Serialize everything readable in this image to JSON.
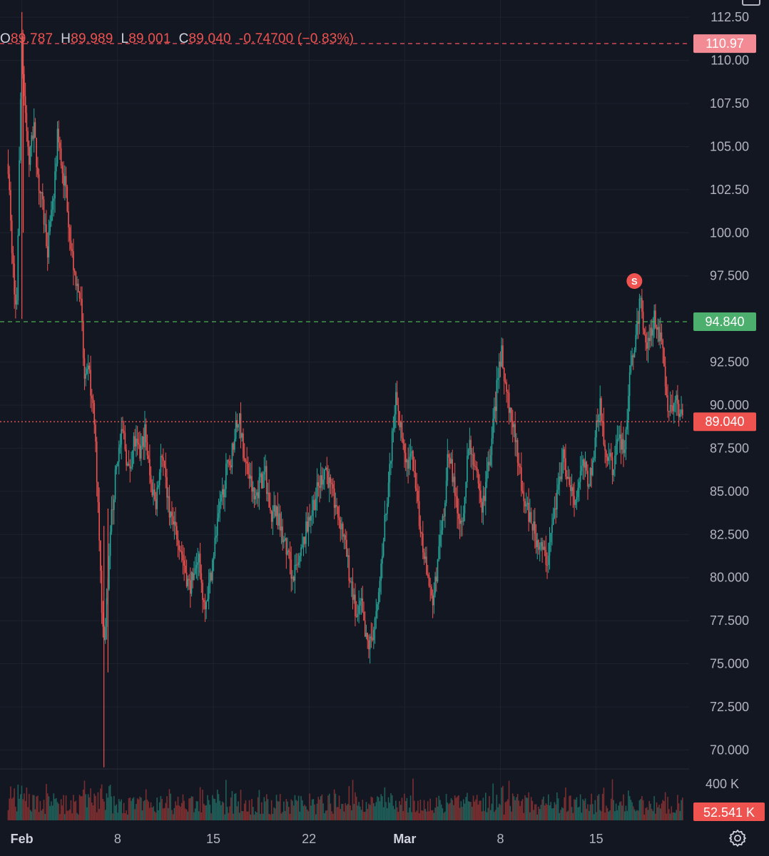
{
  "legend": {
    "open_label": "O",
    "open": "89.787",
    "high_label": "H",
    "high": "89.989",
    "low_label": "L",
    "low": "89.001",
    "close_label": "C",
    "close": "89.040",
    "change": "-0.74700 (−0.83%)"
  },
  "chart_data": {
    "type": "candlestick",
    "y_ticks": [
      "112.50",
      "110.00",
      "107.50",
      "105.00",
      "102.50",
      "100.00",
      "97.500",
      "94.840",
      "92.500",
      "90.000",
      "89.040",
      "87.500",
      "85.000",
      "82.500",
      "80.000",
      "77.500",
      "75.000",
      "72.500",
      "70.000"
    ],
    "ylim": [
      68.9,
      113.5
    ],
    "x_ticks": [
      {
        "label": "Feb",
        "day": 1
      },
      {
        "label": "8",
        "day": 8
      },
      {
        "label": "15",
        "day": 15
      },
      {
        "label": "22",
        "day": 22
      },
      {
        "label": "Mar",
        "day": 29
      },
      {
        "label": "8",
        "day": 36
      },
      {
        "label": "15",
        "day": 43
      }
    ],
    "x_day_range": [
      -0.6,
      49.8
    ],
    "price_lines": [
      {
        "value": 110.97,
        "label": "110.97",
        "color": "#f7525f",
        "bg": "#f28b94",
        "style": "dashed"
      },
      {
        "value": 94.84,
        "label": "94.840",
        "color": "#4caf50",
        "bg": "#4caf6e",
        "style": "dashed"
      },
      {
        "value": 89.04,
        "label": "89.040",
        "color": "#ef5350",
        "bg": "#ef5350",
        "style": "dotted"
      }
    ],
    "marker": {
      "label": "S",
      "day": 45.8,
      "value": 97.2,
      "color": "#ef5350"
    },
    "price_path": [
      [
        0,
        104.0
      ],
      [
        0.2,
        100.0
      ],
      [
        0.6,
        95.0
      ],
      [
        1.0,
        112.0
      ],
      [
        1.1,
        109.0
      ],
      [
        1.5,
        104.0
      ],
      [
        1.9,
        106.0
      ],
      [
        2.2,
        103.0
      ],
      [
        2.5,
        101.5
      ],
      [
        2.9,
        99.0
      ],
      [
        3.3,
        102.0
      ],
      [
        3.6,
        105.5
      ],
      [
        3.9,
        104.0
      ],
      [
        4.3,
        102.0
      ],
      [
        4.6,
        99.0
      ],
      [
        4.9,
        97.5
      ],
      [
        5.3,
        96.0
      ],
      [
        5.6,
        91.0
      ],
      [
        5.9,
        92.0
      ],
      [
        6.3,
        89.0
      ],
      [
        6.6,
        84.0
      ],
      [
        6.8,
        79.0
      ],
      [
        7.0,
        76.0
      ],
      [
        7.3,
        80.0
      ],
      [
        7.6,
        84.0
      ],
      [
        8.0,
        87.0
      ],
      [
        8.4,
        88.5
      ],
      [
        8.8,
        86.0
      ],
      [
        9.2,
        88.0
      ],
      [
        9.6,
        87.0
      ],
      [
        10.0,
        88.5
      ],
      [
        10.4,
        85.5
      ],
      [
        10.8,
        84.5
      ],
      [
        11.2,
        87.0
      ],
      [
        11.6,
        85.0
      ],
      [
        12.0,
        83.0
      ],
      [
        12.4,
        82.5
      ],
      [
        12.8,
        81.0
      ],
      [
        13.2,
        79.5
      ],
      [
        13.6,
        80.0
      ],
      [
        13.9,
        81.5
      ],
      [
        14.3,
        78.5
      ],
      [
        14.7,
        79.5
      ],
      [
        15.1,
        82.0
      ],
      [
        15.5,
        84.0
      ],
      [
        15.9,
        86.0
      ],
      [
        16.3,
        87.0
      ],
      [
        16.6,
        88.5
      ],
      [
        16.9,
        89.5
      ],
      [
        17.2,
        87.0
      ],
      [
        17.6,
        86.0
      ],
      [
        18.0,
        84.5
      ],
      [
        18.4,
        85.5
      ],
      [
        18.8,
        86.0
      ],
      [
        19.2,
        83.5
      ],
      [
        19.6,
        84.0
      ],
      [
        20.0,
        82.5
      ],
      [
        20.4,
        81.5
      ],
      [
        20.8,
        80.0
      ],
      [
        21.2,
        80.5
      ],
      [
        21.6,
        82.0
      ],
      [
        22.0,
        83.5
      ],
      [
        22.4,
        84.5
      ],
      [
        22.8,
        85.5
      ],
      [
        23.2,
        86.5
      ],
      [
        23.6,
        85.0
      ],
      [
        24.0,
        84.0
      ],
      [
        24.4,
        83.0
      ],
      [
        24.8,
        81.0
      ],
      [
        25.2,
        79.0
      ],
      [
        25.5,
        77.5
      ],
      [
        25.8,
        78.5
      ],
      [
        26.1,
        76.5
      ],
      [
        26.4,
        76.0
      ],
      [
        26.7,
        77.0
      ],
      [
        27.0,
        78.0
      ],
      [
        27.3,
        81.0
      ],
      [
        27.6,
        84.0
      ],
      [
        28.0,
        87.0
      ],
      [
        28.3,
        90.5
      ],
      [
        28.6,
        89.0
      ],
      [
        28.9,
        88.0
      ],
      [
        29.2,
        86.5
      ],
      [
        29.5,
        87.0
      ],
      [
        29.8,
        85.0
      ],
      [
        30.1,
        83.0
      ],
      [
        30.4,
        81.5
      ],
      [
        30.7,
        80.0
      ],
      [
        31.0,
        78.5
      ],
      [
        31.3,
        80.0
      ],
      [
        31.6,
        82.0
      ],
      [
        31.9,
        84.0
      ],
      [
        32.2,
        87.5
      ],
      [
        32.5,
        86.0
      ],
      [
        32.8,
        84.5
      ],
      [
        33.1,
        83.0
      ],
      [
        33.4,
        85.0
      ],
      [
        33.7,
        88.0
      ],
      [
        34.0,
        87.0
      ],
      [
        34.3,
        85.5
      ],
      [
        34.6,
        84.0
      ],
      [
        34.9,
        85.0
      ],
      [
        35.2,
        87.0
      ],
      [
        35.5,
        89.0
      ],
      [
        35.8,
        91.5
      ],
      [
        36.1,
        93.0
      ],
      [
        36.4,
        91.0
      ],
      [
        36.7,
        89.5
      ],
      [
        37.0,
        88.5
      ],
      [
        37.3,
        87.0
      ],
      [
        37.6,
        85.0
      ],
      [
        37.9,
        84.0
      ],
      [
        38.2,
        83.5
      ],
      [
        38.5,
        82.5
      ],
      [
        38.8,
        82.0
      ],
      [
        39.1,
        81.5
      ],
      [
        39.4,
        81.0
      ],
      [
        39.7,
        82.5
      ],
      [
        40.0,
        84.0
      ],
      [
        40.3,
        85.5
      ],
      [
        40.6,
        87.0
      ],
      [
        40.9,
        86.0
      ],
      [
        41.2,
        85.0
      ],
      [
        41.5,
        84.5
      ],
      [
        41.8,
        86.0
      ],
      [
        42.1,
        86.5
      ],
      [
        42.4,
        85.5
      ],
      [
        42.7,
        86.5
      ],
      [
        43.0,
        88.5
      ],
      [
        43.3,
        90.0
      ],
      [
        43.6,
        88.0
      ],
      [
        43.9,
        87.0
      ],
      [
        44.2,
        86.5
      ],
      [
        44.5,
        87.5
      ],
      [
        44.8,
        88.0
      ],
      [
        45.1,
        87.5
      ],
      [
        45.4,
        91.0
      ],
      [
        45.7,
        93.0
      ],
      [
        46.0,
        94.5
      ],
      [
        46.2,
        96.5
      ],
      [
        46.4,
        95.0
      ],
      [
        46.7,
        93.5
      ],
      [
        47.0,
        94.5
      ],
      [
        47.3,
        95.0
      ],
      [
        47.6,
        94.0
      ],
      [
        47.9,
        93.0
      ],
      [
        48.2,
        90.0
      ],
      [
        48.5,
        89.5
      ],
      [
        48.8,
        90.5
      ],
      [
        49.1,
        89.5
      ],
      [
        49.4,
        89.04
      ]
    ],
    "volume": {
      "label": "400 K",
      "value": 400000,
      "last_label": "52.541 K",
      "last": 52541
    }
  }
}
